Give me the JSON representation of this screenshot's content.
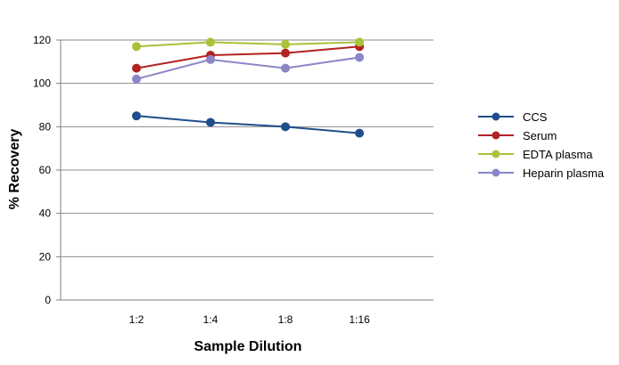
{
  "chart_data": {
    "type": "line",
    "title": "",
    "xlabel": "Sample Dilution",
    "ylabel": "% Recovery",
    "categories": [
      "1:2",
      "1:4",
      "1:8",
      "1:16"
    ],
    "ylim": [
      0,
      120
    ],
    "yticks": [
      0,
      20,
      40,
      60,
      80,
      100,
      120
    ],
    "grid": true,
    "legend_position": "right",
    "series": [
      {
        "name": "CCS",
        "values": [
          85,
          82,
          80,
          77
        ],
        "color": "#1F4E8C"
      },
      {
        "name": "Serum",
        "values": [
          107,
          113,
          114,
          117
        ],
        "color": "#B22222"
      },
      {
        "name": "EDTA plasma",
        "values": [
          117,
          119,
          118,
          119
        ],
        "color": "#A8C23A"
      },
      {
        "name": "Heparin plasma",
        "values": [
          102,
          111,
          107,
          112
        ],
        "color": "#8A86C8"
      }
    ]
  }
}
